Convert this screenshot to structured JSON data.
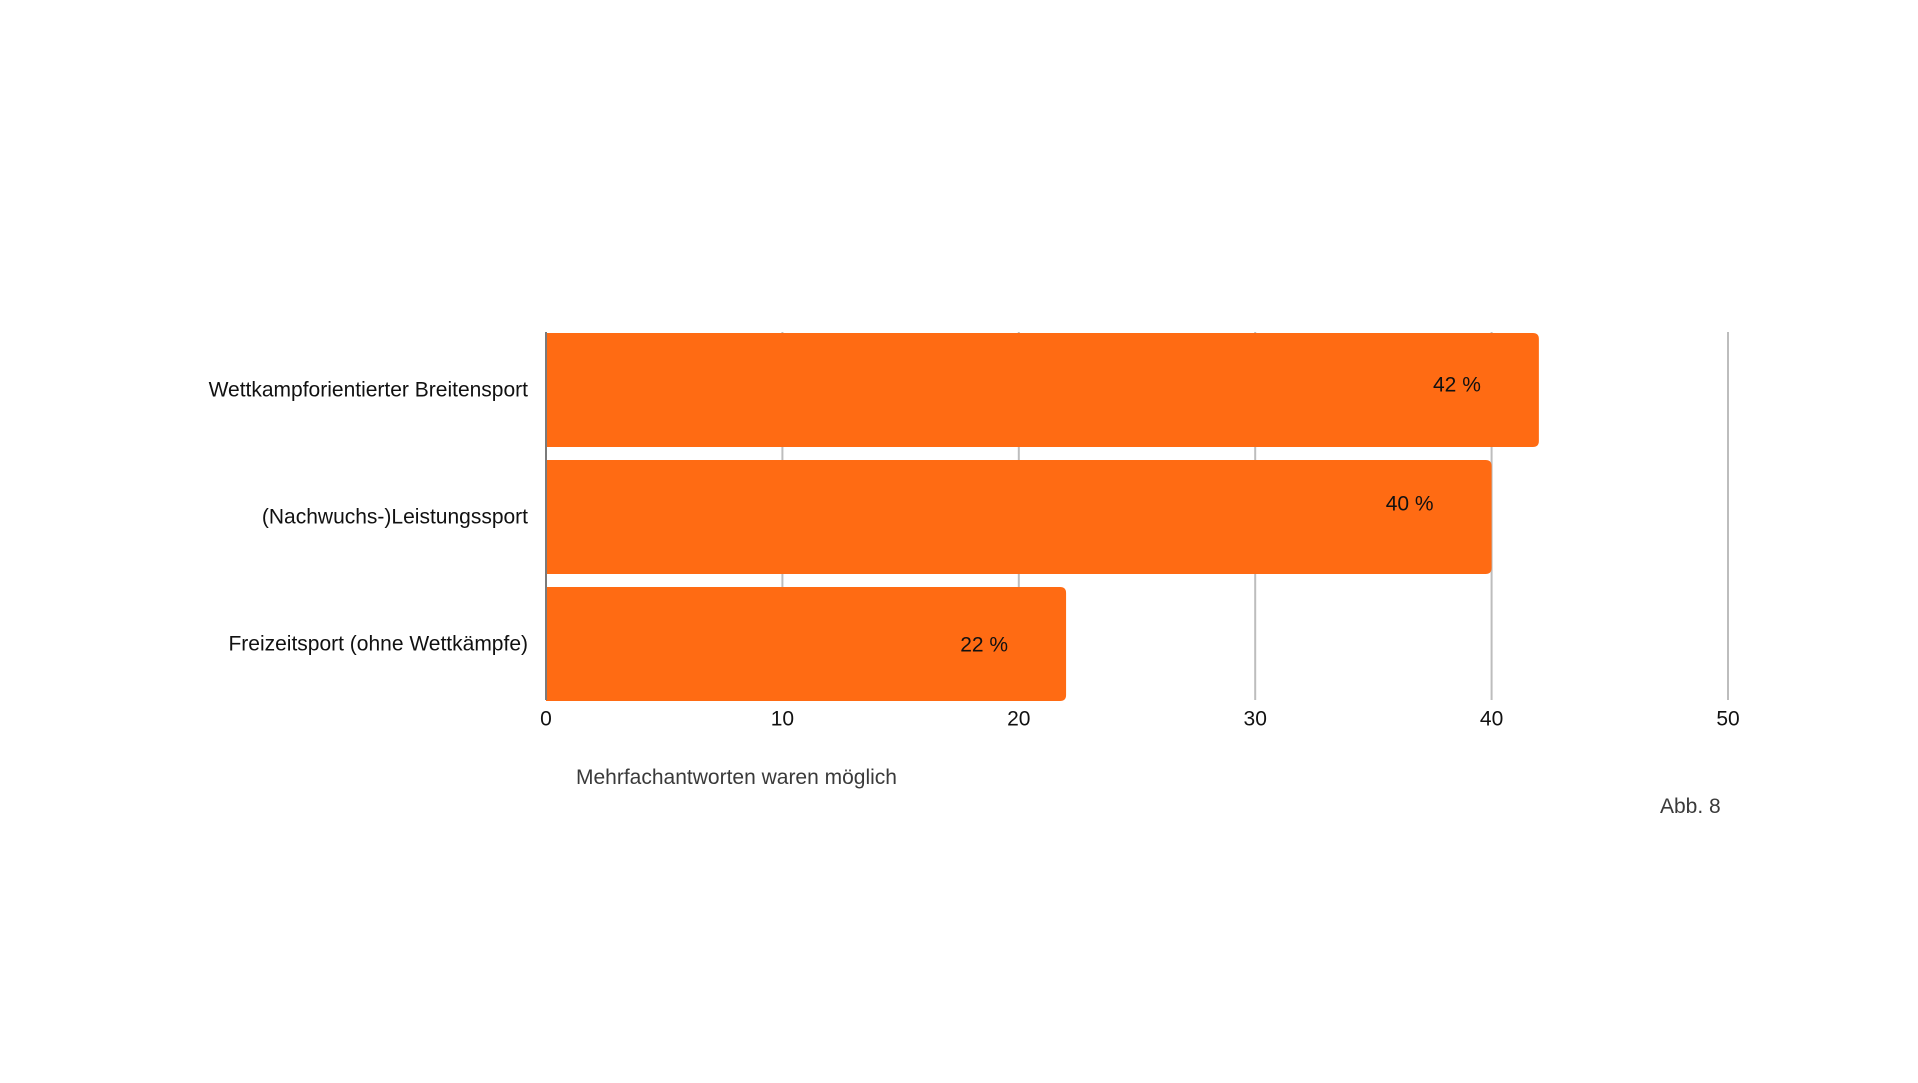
{
  "chart_data": {
    "type": "bar",
    "orientation": "horizontal",
    "categories": [
      "Wettkampforientierter Breitensport",
      "(Nachwuchs-)Leistungssport",
      "Freizeitsport (ohne Wettkämpfe)"
    ],
    "values": [
      42,
      40,
      22
    ],
    "data_labels": [
      "42 %",
      "40 %",
      "22 %"
    ],
    "xlim": [
      0,
      50
    ],
    "xticks": [
      0,
      10,
      20,
      30,
      40,
      50
    ],
    "grid": "vertical",
    "bar_color": "#ff6b13",
    "grid_color": "#bdbdbd",
    "axis_color": "#7a7a7a"
  },
  "footnote": "Mehrfachantworten waren möglich",
  "figure_label": "Abb. 8"
}
